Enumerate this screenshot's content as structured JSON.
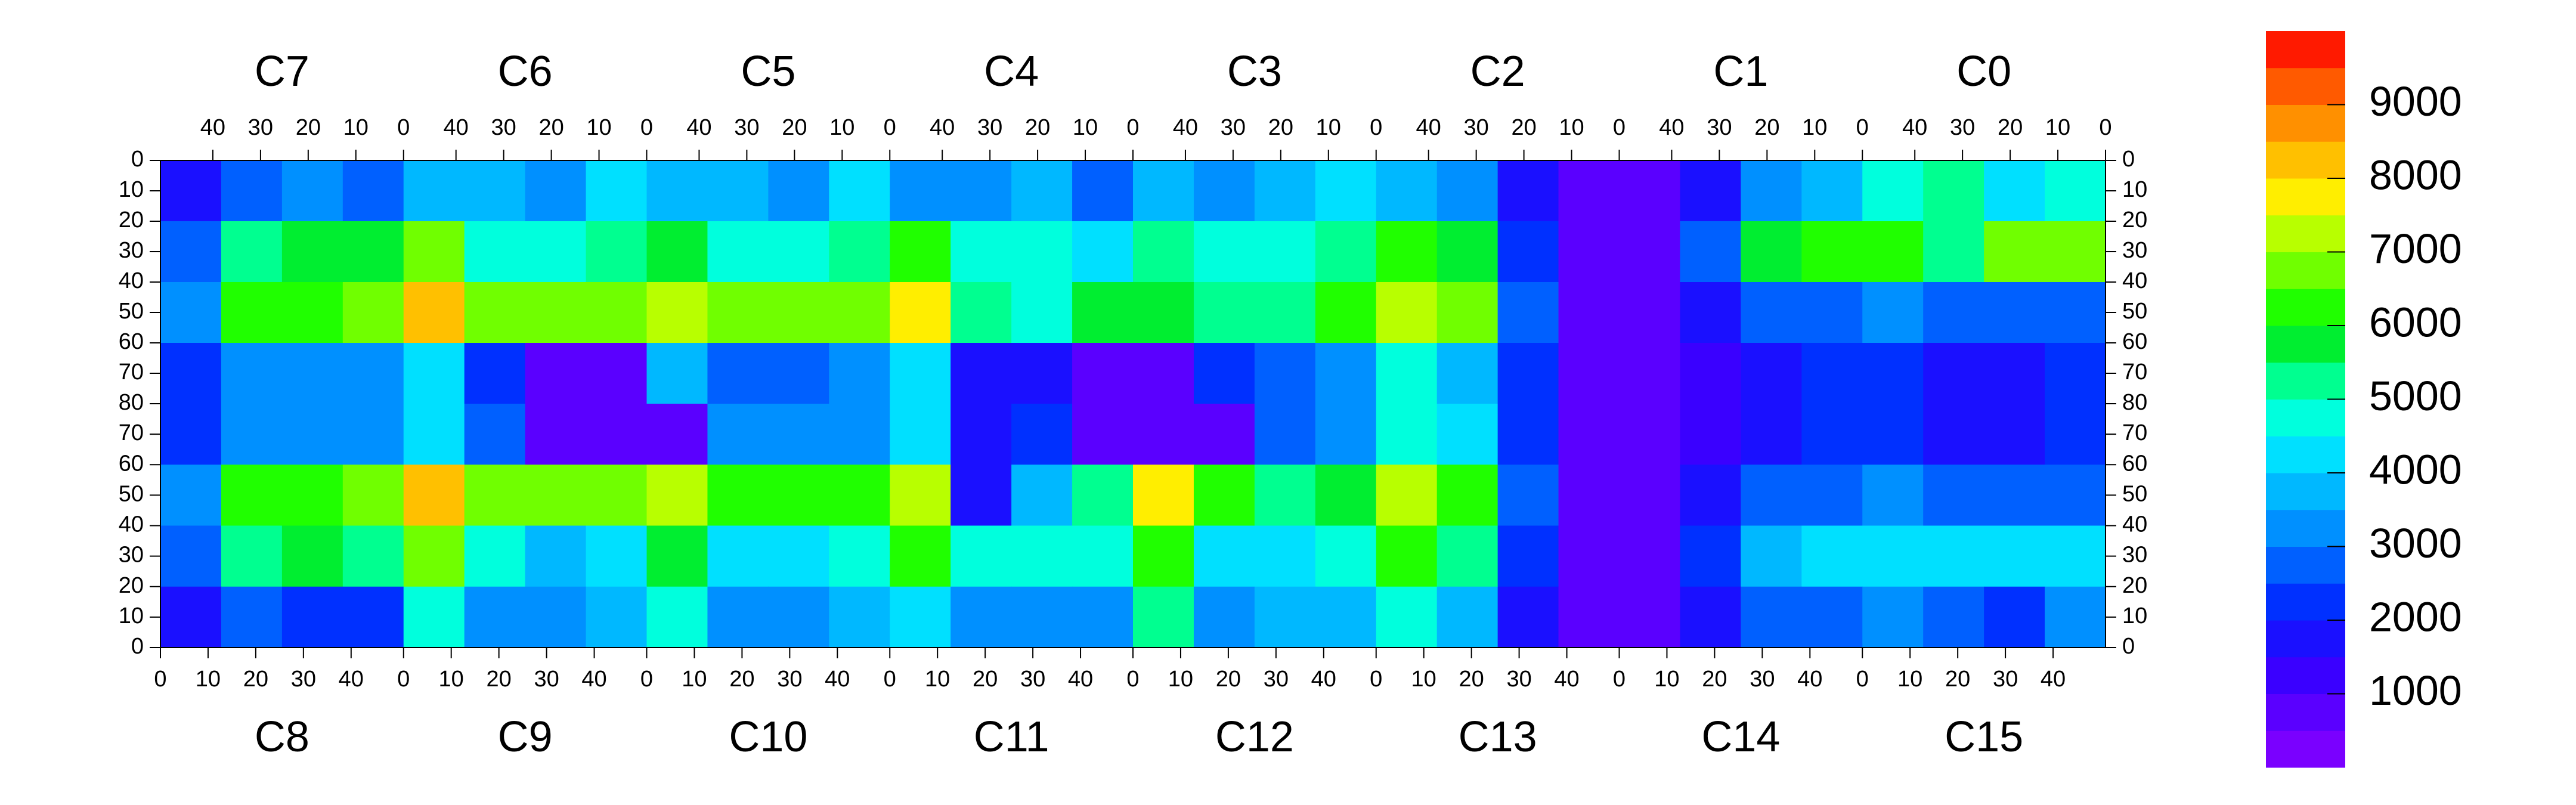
{
  "chart_data": {
    "type": "heatmap",
    "top_chips": [
      {
        "name": "C7",
        "xlim": [
          51,
          0
        ],
        "xticks": [
          40,
          30,
          20,
          10,
          0
        ]
      },
      {
        "name": "C6",
        "xlim": [
          51,
          0
        ],
        "xticks": [
          40,
          30,
          20,
          10,
          0
        ]
      },
      {
        "name": "C5",
        "xlim": [
          51,
          0
        ],
        "xticks": [
          40,
          30,
          20,
          10,
          0
        ]
      },
      {
        "name": "C4",
        "xlim": [
          51,
          0
        ],
        "xticks": [
          40,
          30,
          20,
          10,
          0
        ]
      },
      {
        "name": "C3",
        "xlim": [
          51,
          0
        ],
        "xticks": [
          40,
          30,
          20,
          10,
          0
        ]
      },
      {
        "name": "C2",
        "xlim": [
          51,
          0
        ],
        "xticks": [
          40,
          30,
          20,
          10,
          0
        ]
      },
      {
        "name": "C1",
        "xlim": [
          51,
          0
        ],
        "xticks": [
          40,
          30,
          20,
          10,
          0
        ]
      },
      {
        "name": "C0",
        "xlim": [
          51,
          0
        ],
        "xticks": [
          40,
          30,
          20,
          10,
          0
        ]
      }
    ],
    "bottom_chips": [
      {
        "name": "C8",
        "xlim": [
          0,
          51
        ],
        "xticks": [
          0,
          10,
          20,
          30,
          40
        ]
      },
      {
        "name": "C9",
        "xlim": [
          0,
          51
        ],
        "xticks": [
          0,
          10,
          20,
          30,
          40
        ]
      },
      {
        "name": "C10",
        "xlim": [
          0,
          51
        ],
        "xticks": [
          0,
          10,
          20,
          30,
          40
        ]
      },
      {
        "name": "C11",
        "xlim": [
          0,
          51
        ],
        "xticks": [
          0,
          10,
          20,
          30,
          40
        ]
      },
      {
        "name": "C12",
        "xlim": [
          0,
          51
        ],
        "xticks": [
          0,
          10,
          20,
          30,
          40
        ]
      },
      {
        "name": "C13",
        "xlim": [
          0,
          51
        ],
        "xticks": [
          0,
          10,
          20,
          30,
          40
        ]
      },
      {
        "name": "C14",
        "xlim": [
          0,
          51
        ],
        "xticks": [
          0,
          10,
          20,
          30,
          40
        ]
      },
      {
        "name": "C15",
        "xlim": [
          0,
          51
        ],
        "xticks": [
          0,
          10,
          20,
          30,
          40
        ]
      }
    ],
    "ylim_top": [
      0,
      80
    ],
    "yticks_top": [
      0,
      10,
      20,
      30,
      40,
      50,
      60,
      70,
      80
    ],
    "ylim_bottom": [
      80,
      0
    ],
    "yticks_bottom": [
      70,
      60,
      50,
      40,
      30,
      20,
      10,
      0
    ],
    "z_top": [
      [
        1500,
        2500,
        3000,
        2500,
        3500,
        3500,
        3000,
        4000,
        3500,
        3500,
        3000,
        4000,
        3000,
        3000,
        3500,
        2500,
        3500,
        3000,
        3500,
        4000,
        3500,
        3000,
        1500,
        600,
        500,
        1500,
        3000,
        3500,
        4500,
        5000,
        4000,
        4500
      ],
      [
        2500,
        5000,
        5500,
        5500,
        6500,
        4500,
        4500,
        5000,
        5500,
        4500,
        4500,
        5000,
        6000,
        4500,
        4500,
        4000,
        5000,
        4500,
        4500,
        5000,
        6000,
        5500,
        2000,
        600,
        500,
        2500,
        5500,
        6000,
        6000,
        5000,
        6500,
        6500
      ],
      [
        3000,
        6000,
        6000,
        6500,
        8000,
        6500,
        6500,
        6500,
        7000,
        6500,
        6500,
        6500,
        7500,
        5000,
        4500,
        5500,
        5500,
        5000,
        5000,
        6000,
        7000,
        6500,
        2500,
        600,
        500,
        1500,
        2500,
        2500,
        3000,
        2500,
        2500,
        2500
      ],
      [
        2000,
        3000,
        3000,
        3000,
        4000,
        2000,
        800,
        800,
        3500,
        2500,
        2500,
        3000,
        4000,
        1500,
        1500,
        800,
        800,
        2000,
        2500,
        3000,
        4500,
        3500,
        2000,
        600,
        500,
        1000,
        1500,
        2000,
        2000,
        1500,
        1500,
        2000
      ]
    ],
    "z_bottom": [
      [
        2000,
        3000,
        3000,
        3000,
        4000,
        2500,
        800,
        800,
        800,
        3000,
        3000,
        3000,
        4000,
        1500,
        2000,
        800,
        800,
        800,
        2500,
        3000,
        4500,
        4000,
        2000,
        600,
        500,
        1000,
        1500,
        2000,
        2000,
        1500,
        1500,
        2000
      ],
      [
        3000,
        6000,
        6000,
        6500,
        8000,
        6500,
        6500,
        6500,
        7000,
        6000,
        6000,
        6000,
        7000,
        1500,
        3500,
        5000,
        7500,
        6000,
        5000,
        5500,
        7000,
        6000,
        2500,
        600,
        500,
        1500,
        2500,
        2500,
        3000,
        2500,
        2500,
        2500
      ],
      [
        2500,
        5000,
        5500,
        5000,
        6500,
        4500,
        3500,
        4000,
        5500,
        4000,
        4000,
        4500,
        6000,
        4500,
        4500,
        4500,
        6000,
        4000,
        4000,
        4500,
        6000,
        5000,
        2000,
        600,
        500,
        2000,
        3500,
        4000,
        4000,
        4000,
        4000,
        4000
      ],
      [
        1500,
        2500,
        2000,
        2000,
        4500,
        3000,
        3000,
        3500,
        4500,
        3000,
        3000,
        3500,
        4000,
        3000,
        3000,
        3000,
        5000,
        3000,
        3500,
        3500,
        4500,
        3500,
        1500,
        600,
        500,
        1500,
        2500,
        2500,
        3000,
        2500,
        2000,
        3000
      ]
    ],
    "zlim": [
      0,
      10000
    ],
    "zticks": [
      1000,
      2000,
      3000,
      4000,
      5000,
      6000,
      7000,
      8000,
      9000
    ],
    "colors": [
      "#7a00ff",
      "#5a00ff",
      "#3a00ff",
      "#1a10ff",
      "#0030ff",
      "#0060ff",
      "#0090ff",
      "#00b8ff",
      "#00e0ff",
      "#00ffdd",
      "#00ff90",
      "#00ee30",
      "#20ff00",
      "#70ff00",
      "#b8ff00",
      "#ffee00",
      "#ffc000",
      "#ff9000",
      "#ff5a00",
      "#ff1a00"
    ]
  }
}
